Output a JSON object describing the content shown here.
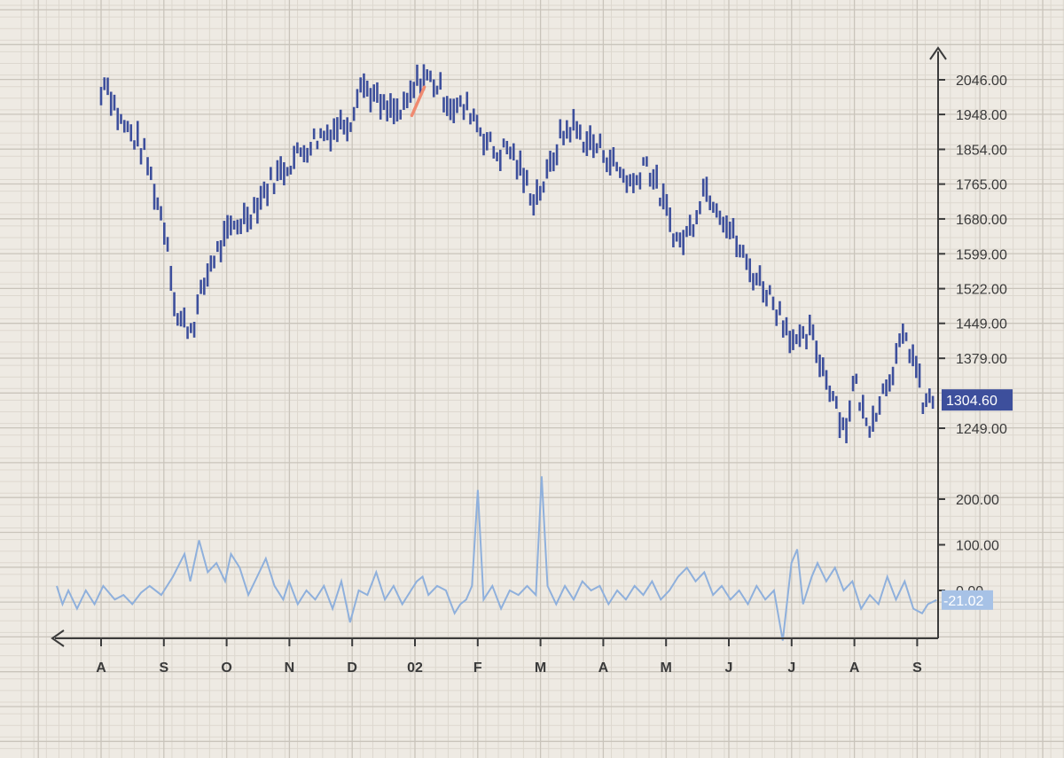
{
  "colors": {
    "background": "#eeeae3",
    "price_bar": "#3d4f9c",
    "oscillator": "#8fb0dc",
    "highlight": "#f08a70",
    "price_tag_bg": "#3d4f9c",
    "osc_tag_bg": "#a7c2e6"
  },
  "chart_data": {
    "type": "bar",
    "grid": true,
    "x_ticks": [
      "A",
      "S",
      "O",
      "N",
      "D",
      "02",
      "F",
      "M",
      "A",
      "M",
      "J",
      "J",
      "A",
      "S"
    ],
    "price_panel": {
      "y_ticks": [
        2046.0,
        1948.0,
        1854.0,
        1765.0,
        1680.0,
        1599.0,
        1522.0,
        1449.0,
        1379.0,
        1249.0
      ],
      "y_tick_labels": [
        "2046.00",
        "1948.00",
        "1854.00",
        "1765.00",
        "1680.00",
        "1599.00",
        "1522.00",
        "1449.00",
        "1379.00",
        "1249.00"
      ],
      "y_range": [
        1200,
        2110
      ],
      "last_value_label": "1304.60",
      "series": [
        {
          "style": "ohlc-bars",
          "key_points": [
            {
              "t": 0.0,
              "v": 2000
            },
            {
              "t": 0.05,
              "v": 2060
            },
            {
              "t": 0.3,
              "v": 1930
            },
            {
              "t": 0.55,
              "v": 1880
            },
            {
              "t": 0.7,
              "v": 1840
            },
            {
              "t": 0.9,
              "v": 1720
            },
            {
              "t": 1.05,
              "v": 1640
            },
            {
              "t": 1.2,
              "v": 1460
            },
            {
              "t": 1.45,
              "v": 1440
            },
            {
              "t": 1.75,
              "v": 1580
            },
            {
              "t": 2.1,
              "v": 1660
            },
            {
              "t": 2.4,
              "v": 1700
            },
            {
              "t": 2.7,
              "v": 1770
            },
            {
              "t": 3.0,
              "v": 1820
            },
            {
              "t": 3.4,
              "v": 1880
            },
            {
              "t": 3.7,
              "v": 1910
            },
            {
              "t": 4.0,
              "v": 1940
            },
            {
              "t": 4.1,
              "v": 2040
            },
            {
              "t": 4.3,
              "v": 2010
            },
            {
              "t": 4.5,
              "v": 1960
            },
            {
              "t": 4.8,
              "v": 1950
            },
            {
              "t": 5.1,
              "v": 2060
            },
            {
              "t": 5.3,
              "v": 2040
            },
            {
              "t": 5.6,
              "v": 1970
            },
            {
              "t": 5.9,
              "v": 1960
            },
            {
              "t": 6.1,
              "v": 1890
            },
            {
              "t": 6.3,
              "v": 1840
            },
            {
              "t": 6.5,
              "v": 1860
            },
            {
              "t": 6.7,
              "v": 1790
            },
            {
              "t": 6.9,
              "v": 1730
            },
            {
              "t": 7.1,
              "v": 1780
            },
            {
              "t": 7.3,
              "v": 1880
            },
            {
              "t": 7.5,
              "v": 1920
            },
            {
              "t": 7.7,
              "v": 1880
            },
            {
              "t": 8.0,
              "v": 1850
            },
            {
              "t": 8.3,
              "v": 1790
            },
            {
              "t": 8.5,
              "v": 1760
            },
            {
              "t": 8.65,
              "v": 1830
            },
            {
              "t": 8.8,
              "v": 1780
            },
            {
              "t": 9.0,
              "v": 1700
            },
            {
              "t": 9.2,
              "v": 1620
            },
            {
              "t": 9.4,
              "v": 1660
            },
            {
              "t": 9.6,
              "v": 1760
            },
            {
              "t": 9.8,
              "v": 1720
            },
            {
              "t": 10.0,
              "v": 1660
            },
            {
              "t": 10.3,
              "v": 1570
            },
            {
              "t": 10.6,
              "v": 1520
            },
            {
              "t": 10.9,
              "v": 1450
            },
            {
              "t": 11.1,
              "v": 1400
            },
            {
              "t": 11.3,
              "v": 1430
            },
            {
              "t": 11.5,
              "v": 1360
            },
            {
              "t": 11.7,
              "v": 1300
            },
            {
              "t": 11.85,
              "v": 1240
            },
            {
              "t": 12.0,
              "v": 1340
            },
            {
              "t": 12.2,
              "v": 1250
            },
            {
              "t": 12.4,
              "v": 1300
            },
            {
              "t": 12.6,
              "v": 1360
            },
            {
              "t": 12.8,
              "v": 1420
            },
            {
              "t": 12.95,
              "v": 1380
            },
            {
              "t": 13.1,
              "v": 1290
            },
            {
              "t": 13.25,
              "v": 1300
            }
          ]
        }
      ],
      "highlight_segment": {
        "from": {
          "t": 4.95,
          "v": 1945
        },
        "to": {
          "t": 5.15,
          "v": 2025
        }
      }
    },
    "oscillator_panel": {
      "y_ticks": [
        200.0,
        100.0,
        0.0
      ],
      "y_tick_labels": [
        "200.00",
        "100.00",
        "0.00"
      ],
      "y_range": [
        -110,
        260
      ],
      "last_value_label": "-21.02",
      "series": [
        {
          "style": "line",
          "points": [
            [
              0.0,
              10
            ],
            [
              0.1,
              -30
            ],
            [
              0.2,
              0
            ],
            [
              0.35,
              -40
            ],
            [
              0.5,
              0
            ],
            [
              0.65,
              -30
            ],
            [
              0.8,
              10
            ],
            [
              1.0,
              -20
            ],
            [
              1.15,
              -10
            ],
            [
              1.3,
              -30
            ],
            [
              1.45,
              -5
            ],
            [
              1.6,
              10
            ],
            [
              1.8,
              -10
            ],
            [
              2.0,
              30
            ],
            [
              2.2,
              80
            ],
            [
              2.3,
              20
            ],
            [
              2.45,
              110
            ],
            [
              2.6,
              40
            ],
            [
              2.75,
              60
            ],
            [
              2.9,
              20
            ],
            [
              3.0,
              80
            ],
            [
              3.15,
              50
            ],
            [
              3.3,
              -10
            ],
            [
              3.45,
              30
            ],
            [
              3.6,
              70
            ],
            [
              3.75,
              10
            ],
            [
              3.9,
              -20
            ],
            [
              4.0,
              20
            ],
            [
              4.15,
              -30
            ],
            [
              4.3,
              0
            ],
            [
              4.45,
              -20
            ],
            [
              4.6,
              10
            ],
            [
              4.75,
              -40
            ],
            [
              4.9,
              20
            ],
            [
              5.05,
              -70
            ],
            [
              5.2,
              0
            ],
            [
              5.35,
              -10
            ],
            [
              5.5,
              40
            ],
            [
              5.65,
              -20
            ],
            [
              5.8,
              10
            ],
            [
              5.95,
              -30
            ],
            [
              6.1,
              0
            ],
            [
              6.2,
              20
            ],
            [
              6.3,
              30
            ],
            [
              6.4,
              -10
            ],
            [
              6.55,
              10
            ],
            [
              6.7,
              0
            ],
            [
              6.85,
              -50
            ],
            [
              6.95,
              -30
            ],
            [
              7.05,
              -20
            ],
            [
              7.15,
              10
            ],
            [
              7.25,
              220
            ],
            [
              7.35,
              -20
            ],
            [
              7.5,
              10
            ],
            [
              7.65,
              -40
            ],
            [
              7.8,
              0
            ],
            [
              7.95,
              -10
            ],
            [
              8.1,
              10
            ],
            [
              8.25,
              -10
            ],
            [
              8.35,
              250
            ],
            [
              8.45,
              10
            ],
            [
              8.6,
              -30
            ],
            [
              8.75,
              10
            ],
            [
              8.9,
              -20
            ],
            [
              9.05,
              20
            ],
            [
              9.2,
              0
            ],
            [
              9.35,
              10
            ],
            [
              9.5,
              -30
            ],
            [
              9.65,
              0
            ],
            [
              9.8,
              -20
            ],
            [
              9.95,
              10
            ],
            [
              10.1,
              -10
            ],
            [
              10.25,
              20
            ],
            [
              10.4,
              -20
            ],
            [
              10.55,
              0
            ],
            [
              10.7,
              30
            ],
            [
              10.85,
              50
            ],
            [
              11.0,
              20
            ],
            [
              11.15,
              40
            ],
            [
              11.3,
              -10
            ],
            [
              11.45,
              10
            ],
            [
              11.6,
              -20
            ],
            [
              11.75,
              0
            ],
            [
              11.9,
              -30
            ],
            [
              12.05,
              10
            ],
            [
              12.2,
              -20
            ],
            [
              12.35,
              0
            ],
            [
              12.5,
              -110
            ],
            [
              12.65,
              60
            ],
            [
              12.75,
              90
            ],
            [
              12.85,
              -30
            ],
            [
              13.0,
              30
            ],
            [
              13.1,
              60
            ],
            [
              13.25,
              20
            ],
            [
              13.4,
              50
            ],
            [
              13.55,
              0
            ],
            [
              13.7,
              20
            ],
            [
              13.85,
              -40
            ],
            [
              14.0,
              -10
            ],
            [
              14.15,
              -30
            ],
            [
              14.3,
              30
            ],
            [
              14.45,
              -20
            ],
            [
              14.6,
              20
            ],
            [
              14.75,
              -40
            ],
            [
              14.9,
              -50
            ],
            [
              15.0,
              -30
            ],
            [
              15.15,
              -21.02
            ]
          ]
        }
      ]
    }
  }
}
